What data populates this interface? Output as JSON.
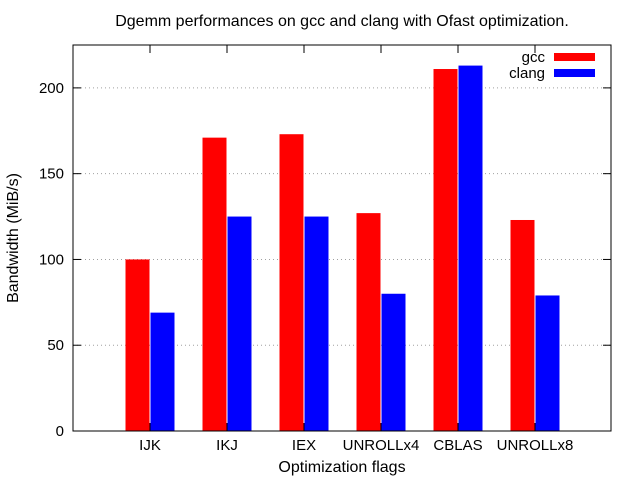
{
  "chart_data": {
    "type": "bar",
    "title": "Dgemm performances on gcc and clang with Ofast optimization.",
    "xlabel": "Optimization flags",
    "ylabel": "Bandwidth (MiB/s)",
    "categories": [
      "IJK",
      "IKJ",
      "IEX",
      "UNROLLx4",
      "CBLAS",
      "UNROLLx8"
    ],
    "series": [
      {
        "name": "gcc",
        "color": "#ff0000",
        "values": [
          100,
          171,
          173,
          127,
          211,
          123
        ]
      },
      {
        "name": "clang",
        "color": "#0000ff",
        "values": [
          69,
          125,
          125,
          80,
          213,
          79
        ]
      }
    ],
    "ylim": [
      0,
      225
    ],
    "yticks": [
      0,
      50,
      100,
      150,
      200
    ],
    "grid": true,
    "legend_position": "top-right"
  }
}
